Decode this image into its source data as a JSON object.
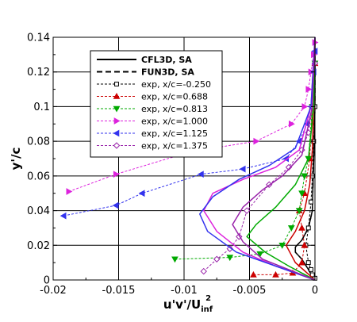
{
  "chart_data": {
    "type": "line",
    "xlabel": "u'v'/U",
    "xlabel_sub": "inf",
    "xlabel_sup": "2",
    "ylabel": "y'/c",
    "xlim": [
      -0.02,
      0
    ],
    "ylim": [
      0,
      0.14
    ],
    "x_ticks": [
      -0.02,
      -0.015,
      -0.01,
      -0.005,
      0
    ],
    "x_tick_labels": [
      "-0.02",
      "-0.015",
      "-0.01",
      "-0.005",
      "0"
    ],
    "y_ticks": [
      0,
      0.02,
      0.04,
      0.06,
      0.08,
      0.1,
      0.12,
      0.14
    ],
    "y_tick_labels": [
      "0",
      "0.02",
      "0.04",
      "0.06",
      "0.08",
      "0.1",
      "0.12",
      "0.14"
    ],
    "grid": true,
    "legend_position": "top-left",
    "series": [
      {
        "name": "CFL3D, SA",
        "kind": "cfd",
        "dash": "solid",
        "color": "#000000",
        "marker": "none",
        "x": [
          0,
          -0.0002,
          -0.0005,
          -0.001,
          -0.0015,
          -0.0015,
          -0.001,
          -0.0005,
          -0.0002,
          -0.0001,
          0,
          0
        ],
        "y": [
          0.0,
          0.002,
          0.006,
          0.012,
          0.016,
          0.019,
          0.023,
          0.03,
          0.04,
          0.07,
          0.1,
          0.14
        ]
      },
      {
        "name": "FUN3D, SA",
        "kind": "cfd",
        "dash": "dashed",
        "color": "#000000",
        "marker": "none",
        "x": [
          0,
          -0.0002,
          -0.0005,
          -0.001,
          -0.0015,
          -0.0015,
          -0.001,
          -0.0005,
          -0.0002,
          -0.0001,
          0,
          0
        ],
        "y": [
          0.0,
          0.002,
          0.006,
          0.012,
          0.016,
          0.019,
          0.023,
          0.03,
          0.04,
          0.07,
          0.1,
          0.14
        ]
      },
      {
        "name": "exp, x/c=-0.250",
        "kind": "exp",
        "color": "#000000",
        "marker": "square",
        "x": [
          0.0,
          -0.0002,
          -0.0003,
          -0.0005,
          -0.0007,
          -0.0005,
          -0.0003,
          -0.0002,
          -0.0001,
          0.0,
          0.0
        ],
        "y": [
          0.001,
          0.003,
          0.006,
          0.01,
          0.02,
          0.03,
          0.045,
          0.06,
          0.08,
          0.1,
          0.125
        ]
      },
      {
        "name": "exp, x/c=0.688",
        "kind": "exp",
        "color": "#cc0000",
        "marker": "triangle-up",
        "x": [
          -0.0047,
          -0.003,
          -0.0017,
          -0.001,
          -0.0008,
          -0.001,
          -0.0012,
          -0.0008,
          -0.0004,
          -0.0002,
          0.0
        ],
        "y": [
          0.003,
          0.003,
          0.004,
          0.01,
          0.02,
          0.03,
          0.04,
          0.05,
          0.07,
          0.1,
          0.125
        ]
      },
      {
        "name": "exp, x/c=0.813",
        "kind": "exp",
        "color": "#00aa00",
        "marker": "triangle-down",
        "x": [
          -0.0107,
          -0.0065,
          -0.0042,
          -0.0025,
          -0.0018,
          -0.0012,
          -0.001,
          -0.0008,
          -0.0005,
          -0.0002,
          0.0
        ],
        "y": [
          0.012,
          0.013,
          0.015,
          0.02,
          0.03,
          0.04,
          0.05,
          0.06,
          0.07,
          0.1,
          0.125
        ]
      },
      {
        "name": "exp, x/c=1.000",
        "kind": "exp",
        "color": "#dd22dd",
        "marker": "triangle-right",
        "x": [
          -0.0188,
          -0.0152,
          -0.0095,
          -0.0045,
          -0.0018,
          -0.0008,
          -0.0005,
          -0.0003,
          -0.0001,
          0.0
        ],
        "y": [
          0.051,
          0.061,
          0.074,
          0.08,
          0.09,
          0.1,
          0.11,
          0.12,
          0.13,
          0.137
        ]
      },
      {
        "name": "exp, x/c=1.125",
        "kind": "exp",
        "color": "#3333ee",
        "marker": "triangle-left",
        "x": [
          -0.0192,
          -0.0152,
          -0.0132,
          -0.0087,
          -0.0055,
          -0.0022,
          -0.0012,
          -0.0006,
          -0.0003,
          -0.0001,
          0.0
        ],
        "y": [
          0.037,
          0.043,
          0.05,
          0.061,
          0.064,
          0.07,
          0.08,
          0.09,
          0.1,
          0.12,
          0.132
        ]
      },
      {
        "name": "exp, x/c=1.375",
        "kind": "exp",
        "color": "#9922aa",
        "marker": "diamond",
        "x": [
          -0.0085,
          -0.0075,
          -0.0065,
          -0.0058,
          -0.0052,
          -0.0035,
          -0.002,
          -0.001,
          -0.0005,
          -0.0002,
          0.0
        ],
        "y": [
          0.005,
          0.012,
          0.018,
          0.025,
          0.04,
          0.055,
          0.065,
          0.075,
          0.085,
          0.1,
          0.125
        ]
      },
      {
        "kind": "cfd-colored",
        "color": "#cc0000",
        "dash": "solid",
        "x": [
          0,
          -0.0015,
          -0.0022,
          -0.0015,
          -0.0008,
          -0.0004,
          -0.0002,
          -0.0001,
          0
        ],
        "y": [
          0.0,
          0.01,
          0.02,
          0.028,
          0.04,
          0.055,
          0.075,
          0.1,
          0.14
        ]
      },
      {
        "kind": "cfd-colored",
        "color": "#00aa00",
        "dash": "solid",
        "x": [
          0,
          -0.002,
          -0.0038,
          -0.0052,
          -0.0045,
          -0.003,
          -0.0015,
          -0.0005,
          -0.0001,
          0
        ],
        "y": [
          0.0,
          0.008,
          0.016,
          0.025,
          0.032,
          0.042,
          0.055,
          0.07,
          0.1,
          0.14
        ]
      },
      {
        "kind": "cfd-colored",
        "color": "#dd22dd",
        "dash": "solid",
        "x": [
          0,
          -0.003,
          -0.0055,
          -0.0075,
          -0.0085,
          -0.0078,
          -0.0055,
          -0.003,
          -0.0012,
          -0.0003,
          0
        ],
        "y": [
          0.0,
          0.008,
          0.016,
          0.028,
          0.04,
          0.05,
          0.058,
          0.065,
          0.075,
          0.1,
          0.14
        ]
      },
      {
        "kind": "cfd-colored",
        "color": "#3333ee",
        "dash": "solid",
        "x": [
          0,
          -0.003,
          -0.006,
          -0.0082,
          -0.0088,
          -0.0078,
          -0.0058,
          -0.0035,
          -0.0015,
          -0.0003,
          0
        ],
        "y": [
          0.0,
          0.008,
          0.016,
          0.028,
          0.038,
          0.048,
          0.058,
          0.066,
          0.076,
          0.1,
          0.14
        ]
      },
      {
        "kind": "cfd-colored",
        "color": "#9922aa",
        "dash": "solid",
        "x": [
          0,
          -0.002,
          -0.004,
          -0.0055,
          -0.0063,
          -0.0055,
          -0.004,
          -0.0025,
          -0.001,
          -0.0002,
          0
        ],
        "y": [
          0.0,
          0.006,
          0.012,
          0.022,
          0.032,
          0.042,
          0.052,
          0.06,
          0.072,
          0.1,
          0.14
        ]
      }
    ]
  }
}
